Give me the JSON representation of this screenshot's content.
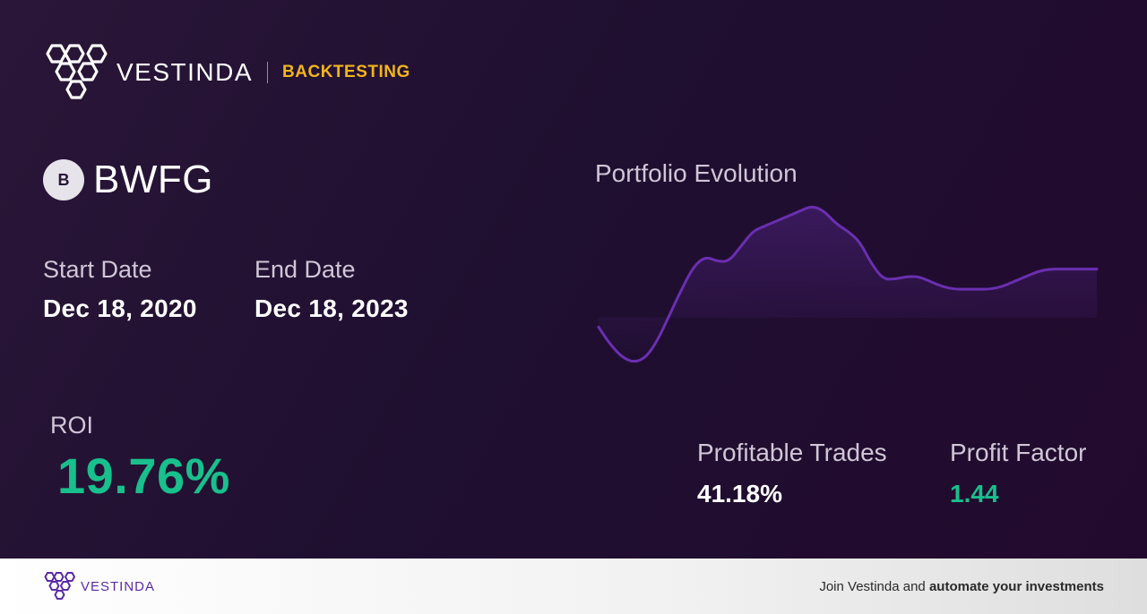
{
  "header": {
    "brand": "VESTINDA",
    "section": "BACKTESTING"
  },
  "ticker": {
    "badge": "B",
    "symbol": "BWFG"
  },
  "dates": {
    "start_label": "Start Date",
    "start_value": "Dec 18, 2020",
    "end_label": "End Date",
    "end_value": "Dec 18, 2023"
  },
  "roi": {
    "label": "ROI",
    "value": "19.76%"
  },
  "stats": {
    "profitable_trades_label": "Profitable Trades",
    "profitable_trades_value": "41.18%",
    "profit_factor_label": "Profit Factor",
    "profit_factor_value": "1.44"
  },
  "colors": {
    "accent": "#f2b51b",
    "positive": "#18c08c",
    "line": "#6a2fb0",
    "brand_purple": "#5a2ba5"
  },
  "chart_data": {
    "type": "area",
    "title": "Portfolio Evolution",
    "values": [
      52,
      45,
      40,
      38,
      40,
      47,
      57,
      67,
      76,
      80,
      78,
      78,
      84,
      90,
      92,
      94,
      96,
      98,
      100,
      98,
      93,
      90,
      86,
      77,
      71,
      71,
      72,
      72,
      70,
      68,
      67,
      67,
      67,
      67,
      68,
      70,
      72,
      74,
      75,
      75,
      75,
      75,
      75
    ]
  },
  "footer": {
    "brand": "VESTINDA",
    "cta_prefix": "Join Vestinda and ",
    "cta_bold": "automate your investments"
  }
}
